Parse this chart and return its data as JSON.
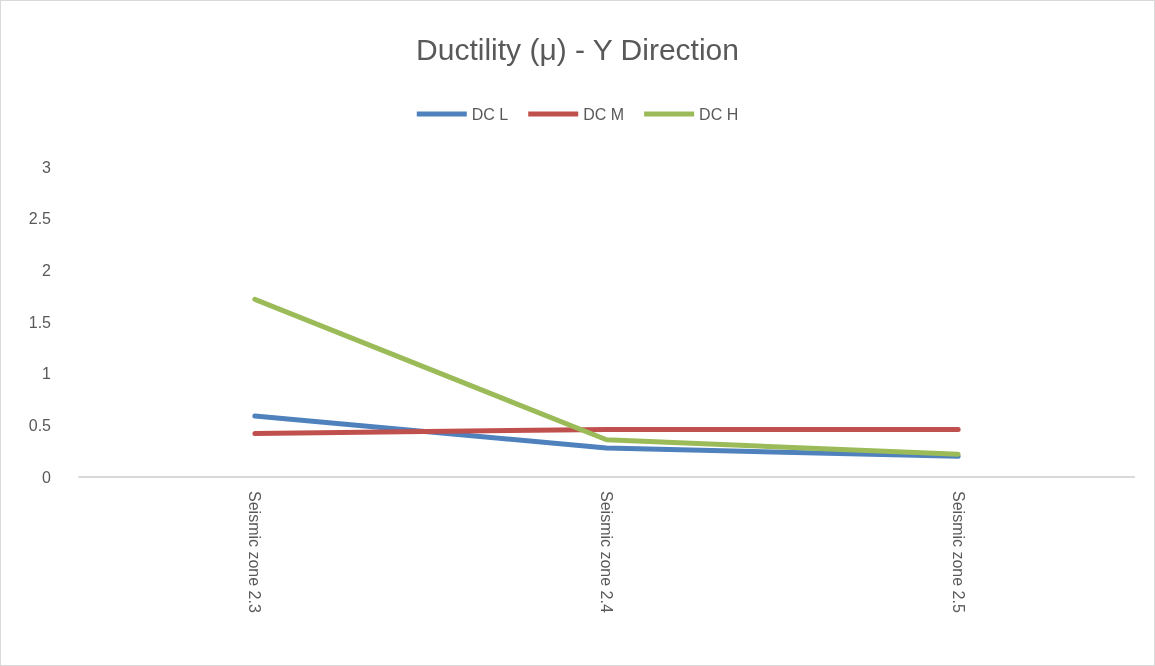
{
  "chart_data": {
    "type": "line",
    "title": "Ductility (μ) - Y Direction",
    "categories": [
      "Seismic zone 2.3",
      "Seismic zone 2.4",
      "Seismic zone 2.5"
    ],
    "series": [
      {
        "name": "DC L",
        "color": "#4f81bd",
        "values": [
          0.59,
          0.28,
          0.2
        ]
      },
      {
        "name": "DC M",
        "color": "#c0504d",
        "values": [
          0.42,
          0.46,
          0.46
        ]
      },
      {
        "name": "DC H",
        "color": "#9bbb59",
        "values": [
          1.72,
          0.36,
          0.22
        ]
      }
    ],
    "ylim": [
      0,
      3
    ],
    "yticks": [
      0,
      0.5,
      1,
      1.5,
      2,
      2.5,
      3
    ],
    "grid": false,
    "legend": "top",
    "marker": "none",
    "line_style": "solid"
  }
}
